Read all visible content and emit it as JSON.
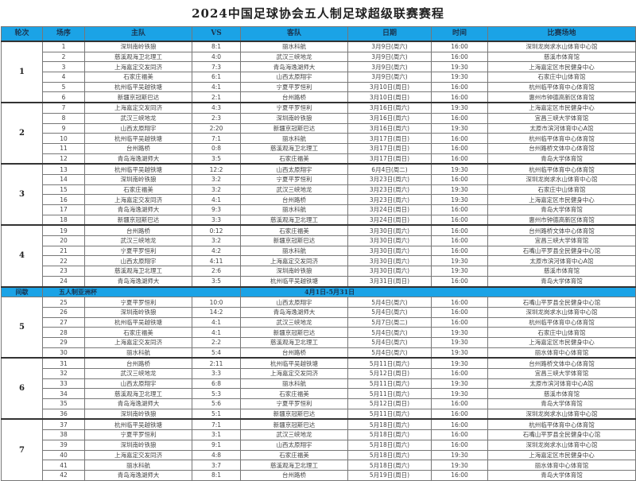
{
  "title": "2024中国足球协会五人制足球超级联赛赛程",
  "colors": {
    "header_bg": "#1ba3e6",
    "header_text": "#1a3550"
  },
  "headers": [
    "轮次",
    "场序",
    "主队",
    "VS",
    "客队",
    "日期",
    "时间",
    "比赛场地"
  ],
  "rounds": [
    {
      "label": "1",
      "matches": [
        [
          "1",
          "深圳南岭铁狼",
          "8:1",
          "丽水科航",
          "3月9日(周六)",
          "16:00",
          "深圳龙岗求水山体育中心馆"
        ],
        [
          "2",
          "慈溪观海卫北理工",
          "4:0",
          "武汉三峡地龙",
          "3月9日(周六)",
          "16:00",
          "慈溪市体育馆"
        ],
        [
          "3",
          "上海嘉定交发同济",
          "7:3",
          "青岛海逸湖师大",
          "3月9日(周六)",
          "19:30",
          "上海嘉定区市民健身中心"
        ],
        [
          "4",
          "石家庄福美",
          "6:1",
          "山西太原翔宇",
          "3月9日(周六)",
          "19:30",
          "石家庄中山体育馆"
        ],
        [
          "5",
          "杭州临平吴越铁塘",
          "4:1",
          "宁夏平罗恒利",
          "3月10日(周日)",
          "16:00",
          "杭州临平体育中心体育馆"
        ],
        [
          "6",
          "新疆京冠斯巴达",
          "2:1",
          "台州路桥",
          "3月10日(周日)",
          "16:00",
          "惠州市钟德高新区体育馆"
        ]
      ]
    },
    {
      "label": "2",
      "matches": [
        [
          "7",
          "上海嘉定交发同济",
          "4:3",
          "宁夏平罗恒利",
          "3月16日(周六)",
          "19:30",
          "上海嘉定区市民健身中心"
        ],
        [
          "8",
          "武汉三峡地龙",
          "2:3",
          "深圳南岭铁狼",
          "3月16日(周六)",
          "16:00",
          "宜昌三峡大学体育馆"
        ],
        [
          "9",
          "山西太原翔宇",
          "2:20",
          "新疆京冠斯巴达",
          "3月16日(周六)",
          "19:30",
          "太原市滨河体育中心A馆"
        ],
        [
          "10",
          "杭州临平吴越铁塘",
          "7:1",
          "丽水科航",
          "3月17日(周日)",
          "16:00",
          "杭州临平体育中心体育馆"
        ],
        [
          "11",
          "台州路桥",
          "0:8",
          "慈溪观海卫北理工",
          "3月17日(周日)",
          "16:00",
          "台州路桥文体中心体育馆"
        ],
        [
          "12",
          "青岛海逸湖师大",
          "3:5",
          "石家庄福美",
          "3月17日(周日)",
          "16:00",
          "青岛大学体育馆"
        ]
      ]
    },
    {
      "label": "3",
      "matches": [
        [
          "13",
          "杭州临平吴越铁塘",
          "12:2",
          "山西太原翔宇",
          "6月4日(周二)",
          "19:30",
          "杭州临平体育中心体育馆"
        ],
        [
          "14",
          "深圳南岭铁狼",
          "3:2",
          "宁夏平罗恒利",
          "3月23日(周六)",
          "16:00",
          "深圳龙岗求水山体育中心馆"
        ],
        [
          "15",
          "石家庄福美",
          "3:2",
          "武汉三峡地龙",
          "3月23日(周六)",
          "19:30",
          "石家庄中山体育馆"
        ],
        [
          "16",
          "上海嘉定交发同济",
          "4:1",
          "台州路桥",
          "3月23日(周六)",
          "19:30",
          "上海嘉定区市民健身中心"
        ],
        [
          "17",
          "青岛海逸湖师大",
          "9:3",
          "丽水科航",
          "3月24日(周日)",
          "16:00",
          "青岛大学体育馆"
        ],
        [
          "18",
          "新疆京冠斯巴达",
          "3:3",
          "慈溪观海卫北理工",
          "3月24日(周日)",
          "16:00",
          "惠州市钟德高新区体育馆"
        ]
      ]
    },
    {
      "label": "4",
      "matches": [
        [
          "19",
          "台州路桥",
          "0:12",
          "石家庄福美",
          "3月30日(周六)",
          "16:00",
          "台州路桥文体中心体育馆"
        ],
        [
          "20",
          "武汉三峡地龙",
          "3:2",
          "新疆京冠斯巴达",
          "3月30日(周六)",
          "16:00",
          "宜昌三峡大学体育馆"
        ],
        [
          "21",
          "宁夏平罗恒利",
          "4:2",
          "丽水科航",
          "3月30日(周六)",
          "16:00",
          "石嘴山平罗县全民健身中心馆"
        ],
        [
          "22",
          "山西太原翔宇",
          "4:11",
          "上海嘉定交发同济",
          "3月30日(周六)",
          "19:30",
          "太原市滨河体育中心A馆"
        ],
        [
          "23",
          "慈溪观海卫北理工",
          "2:6",
          "深圳南岭铁狼",
          "3月30日(周六)",
          "19:30",
          "慈溪市体育馆"
        ],
        [
          "24",
          "青岛海逸湖师大",
          "3:5",
          "杭州临平吴越铁塘",
          "3月31日(周日)",
          "16:00",
          "青岛大学体育馆"
        ]
      ]
    },
    {
      "label": "5",
      "matches": [
        [
          "25",
          "宁夏平罗恒利",
          "10:0",
          "山西太原翔宇",
          "5月4日(周六)",
          "16:00",
          "石嘴山平罗县全民健身中心馆"
        ],
        [
          "26",
          "深圳南岭铁狼",
          "14:2",
          "青岛海逸湖师大",
          "5月4日(周六)",
          "16:00",
          "深圳龙岗求水山体育中心馆"
        ],
        [
          "27",
          "杭州临平吴越铁塘",
          "4:1",
          "武汉三峡地龙",
          "5月7日(周二)",
          "16:00",
          "杭州临平体育中心体育馆"
        ],
        [
          "28",
          "石家庄福美",
          "4:1",
          "新疆京冠斯巴达",
          "5月4日(周六)",
          "19:30",
          "石家庄中山体育馆"
        ],
        [
          "29",
          "上海嘉定交发同济",
          "2:2",
          "慈溪观海卫北理工",
          "5月4日(周六)",
          "19:30",
          "上海嘉定区市民健身中心"
        ],
        [
          "30",
          "丽水科航",
          "5:4",
          "台州路桥",
          "5月4日(周六)",
          "19:30",
          "丽水体育中心体育馆"
        ]
      ]
    },
    {
      "label": "6",
      "matches": [
        [
          "31",
          "台州路桥",
          "2:11",
          "杭州临平吴越铁塘",
          "5月11日(周六)",
          "19:30",
          "台州路桥文体中心体育馆"
        ],
        [
          "32",
          "武汉三峡地龙",
          "3:3",
          "上海嘉定交发同济",
          "5月12日(周日)",
          "16:00",
          "宜昌三峡大学体育馆"
        ],
        [
          "33",
          "山西太原翔宇",
          "6:8",
          "丽水科航",
          "5月11日(周六)",
          "19:30",
          "太原市滨河体育中心A馆"
        ],
        [
          "34",
          "慈溪观海卫北理工",
          "5:3",
          "石家庄福美",
          "5月11日(周六)",
          "19:30",
          "慈溪市体育馆"
        ],
        [
          "35",
          "青岛海逸湖师大",
          "5:6",
          "宁夏平罗恒利",
          "5月12日(周日)",
          "16:00",
          "青岛大学体育馆"
        ],
        [
          "36",
          "深圳南岭铁狼",
          "5:1",
          "新疆京冠斯巴达",
          "5月11日(周六)",
          "16:00",
          "深圳龙岗求水山体育中心馆"
        ]
      ]
    },
    {
      "label": "7",
      "matches": [
        [
          "37",
          "杭州临平吴越铁塘",
          "7:1",
          "新疆京冠斯巴达",
          "5月18日(周六)",
          "16:00",
          "杭州临平体育中心体育馆"
        ],
        [
          "38",
          "宁夏平罗恒利",
          "3:1",
          "武汉三峡地龙",
          "5月18日(周六)",
          "16:00",
          "石嘴山平罗县全民健身中心馆"
        ],
        [
          "39",
          "深圳南岭铁狼",
          "9:1",
          "山西太原翔宇",
          "5月18日(周六)",
          "16:00",
          "深圳龙岗求水山体育中心馆"
        ],
        [
          "40",
          "上海嘉定交发同济",
          "4:8",
          "石家庄福美",
          "5月18日(周六)",
          "19:30",
          "上海嘉定区市民健身中心"
        ],
        [
          "41",
          "丽水科航",
          "3:7",
          "慈溪观海卫北理工",
          "5月18日(周六)",
          "19:30",
          "丽水体育中心体育馆"
        ],
        [
          "42",
          "青岛海逸湖师大",
          "8:1",
          "台州路桥",
          "5月19日(周日)",
          "16:00",
          "青岛大学体育馆"
        ]
      ]
    }
  ],
  "break": {
    "after_round": 4,
    "label": "间歇",
    "event": "五人制亚洲杯",
    "period": "4月1日-5月31日"
  }
}
